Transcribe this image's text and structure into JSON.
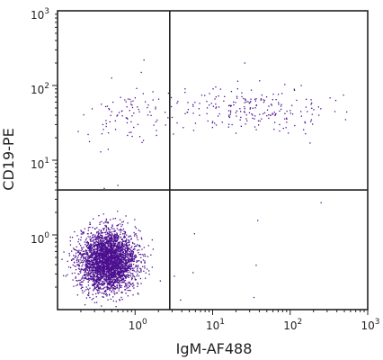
{
  "chart_data": {
    "type": "scatter",
    "xlabel": "IgM-AF488",
    "ylabel": "CD19-PE",
    "xscale": "log",
    "yscale": "log",
    "xlim": [
      0.1,
      1000
    ],
    "ylim": [
      0.1,
      1000
    ],
    "x_ticks": [
      {
        "value": 1,
        "base": "10",
        "exp": "0"
      },
      {
        "value": 10,
        "base": "10",
        "exp": "1"
      },
      {
        "value": 100,
        "base": "10",
        "exp": "2"
      },
      {
        "value": 1000,
        "base": "10",
        "exp": "3"
      }
    ],
    "y_ticks": [
      {
        "value": 1,
        "base": "10",
        "exp": "0"
      },
      {
        "value": 10,
        "base": "10",
        "exp": "1"
      },
      {
        "value": 100,
        "base": "10",
        "exp": "2"
      },
      {
        "value": 1000,
        "base": "10",
        "exp": "3"
      }
    ],
    "quadrant_gates": {
      "x": 2.8,
      "y": 4.0
    },
    "point_color": "#4b0f8f",
    "populations": [
      {
        "name": "",
        "center": [
          0.45,
          0.45
        ],
        "spread_decades": [
          0.18,
          0.2
        ],
        "count": 3400
      },
      {
        "name": "",
        "center": [
          30,
          50
        ],
        "spread_decades": [
          0.55,
          0.14
        ],
        "count": 220
      },
      {
        "name": "",
        "center": [
          0.8,
          40
        ],
        "spread_decades": [
          0.28,
          0.18
        ],
        "count": 80
      },
      {
        "name": "",
        "center": [
          15,
          0.4
        ],
        "spread_decades": [
          0.7,
          0.25
        ],
        "count": 6
      }
    ],
    "outliers": [
      [
        1.3,
        220
      ],
      [
        1.2,
        150
      ],
      [
        26,
        200
      ],
      [
        250,
        2.7
      ],
      [
        0.4,
        4.2
      ],
      [
        0.6,
        4.6
      ],
      [
        180,
        17
      ],
      [
        3.2,
        0.28
      ]
    ],
    "grid": false,
    "legend": "none"
  }
}
